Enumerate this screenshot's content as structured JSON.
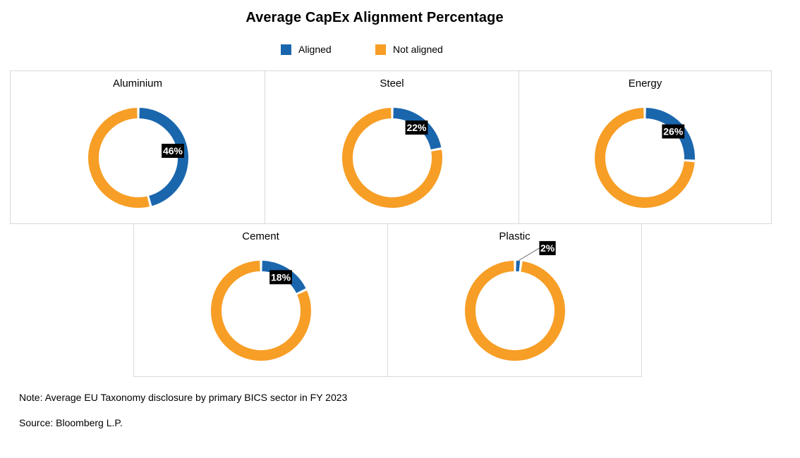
{
  "title": "Average CapEx Alignment Percentage",
  "legend": {
    "aligned": "Aligned",
    "not_aligned": "Not aligned"
  },
  "colors": {
    "aligned": "#1a66ad",
    "not_aligned": "#f79e26"
  },
  "note": "Note:  Average EU Taxonomy disclosure by primary BICS sector in FY 2023",
  "source": "Source: Bloomberg L.P.",
  "chart_data": [
    {
      "type": "pie",
      "title": "Aluminium",
      "categories": [
        "Aligned",
        "Not aligned"
      ],
      "values": [
        46,
        54
      ],
      "data_label": "46%"
    },
    {
      "type": "pie",
      "title": "Steel",
      "categories": [
        "Aligned",
        "Not aligned"
      ],
      "values": [
        22,
        78
      ],
      "data_label": "22%"
    },
    {
      "type": "pie",
      "title": "Energy",
      "categories": [
        "Aligned",
        "Not aligned"
      ],
      "values": [
        26,
        74
      ],
      "data_label": "26%"
    },
    {
      "type": "pie",
      "title": "Cement",
      "categories": [
        "Aligned",
        "Not aligned"
      ],
      "values": [
        18,
        82
      ],
      "data_label": "18%"
    },
    {
      "type": "pie",
      "title": "Plastic",
      "categories": [
        "Aligned",
        "Not aligned"
      ],
      "values": [
        2,
        98
      ],
      "data_label": "2%"
    }
  ]
}
